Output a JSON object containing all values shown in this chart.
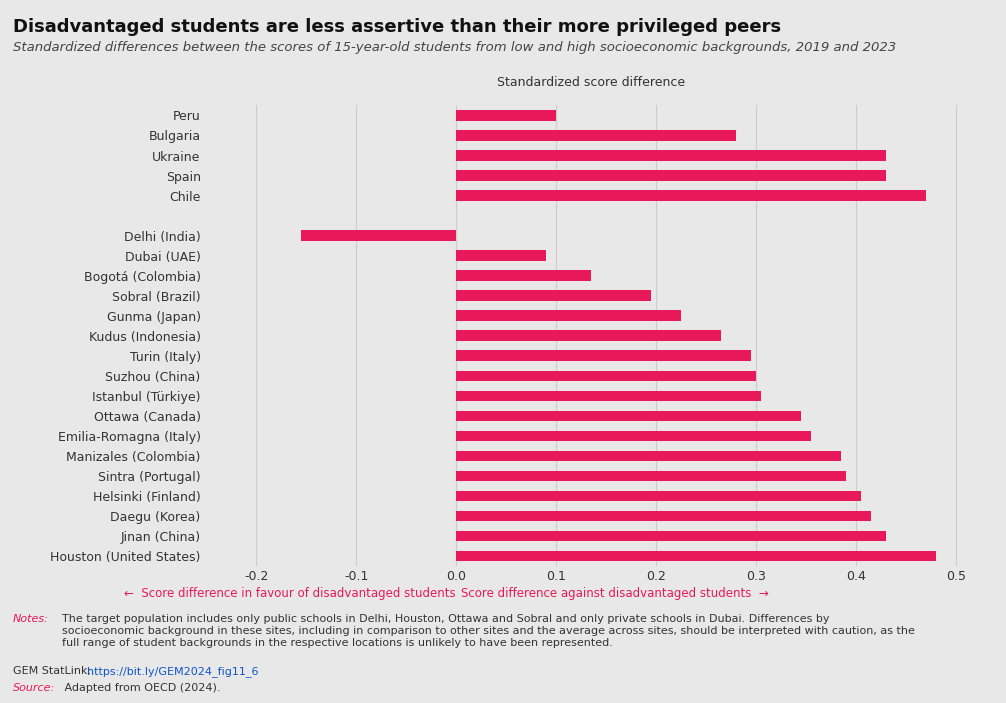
{
  "title": "Disadvantaged students are less assertive than their more privileged peers",
  "subtitle": "Standardized differences between the scores of 15-year-old students from low and high socioeconomic backgrounds, 2019 and 2023",
  "xlabel": "Standardized score difference",
  "categories": [
    "Peru",
    "Bulgaria",
    "Ukraine",
    "Spain",
    "Chile",
    "",
    "Delhi (India)",
    "Dubai (UAE)",
    "Bogotá (Colombia)",
    "Sobral (Brazil)",
    "Gunma (Japan)",
    "Kudus (Indonesia)",
    "Turin (Italy)",
    "Suzhou (China)",
    "Istanbul (Türkiye)",
    "Ottawa (Canada)",
    "Emilia-Romagna (Italy)",
    "Manizales (Colombia)",
    "Sintra (Portugal)",
    "Helsinki (Finland)",
    "Daegu (Korea)",
    "Jinan (China)",
    "Houston (United States)"
  ],
  "values": [
    0.1,
    0.28,
    0.43,
    0.43,
    0.47,
    null,
    -0.155,
    0.09,
    0.135,
    0.195,
    0.225,
    0.265,
    0.295,
    0.3,
    0.305,
    0.345,
    0.355,
    0.385,
    0.39,
    0.405,
    0.415,
    0.43,
    0.48
  ],
  "bar_color": "#e8185a",
  "bg_color": "#e8e8e8",
  "plot_bg_color": "#e8e8e8",
  "xlim": [
    -0.25,
    0.52
  ],
  "xticks": [
    -0.2,
    -0.1,
    0.0,
    0.1,
    0.2,
    0.3,
    0.4,
    0.5
  ],
  "left_arrow_label": "Score difference in favour of disadvantaged students",
  "right_arrow_label": "Score difference against disadvantaged students",
  "notes_text": "The target population includes only public schools in Delhi, Houston, Ottawa and Sobral and only private schools in Dubai. Differences by\nsocioeconomic background in these sites, including in comparison to other sites and the average across sites, should be interpreted with caution, as the\nfull range of student backgrounds in the respective locations is unlikely to have been represented.",
  "gemlink_label": "GEM StatLink: ",
  "gemlink_url": "https://bit.ly/GEM2024_fig11_6",
  "source_label": "Source:",
  "source_text": " Adapted from OECD (2024).",
  "grid_color": "#cccccc",
  "title_fontsize": 13,
  "subtitle_fontsize": 9.5,
  "label_fontsize": 9,
  "tick_fontsize": 9
}
